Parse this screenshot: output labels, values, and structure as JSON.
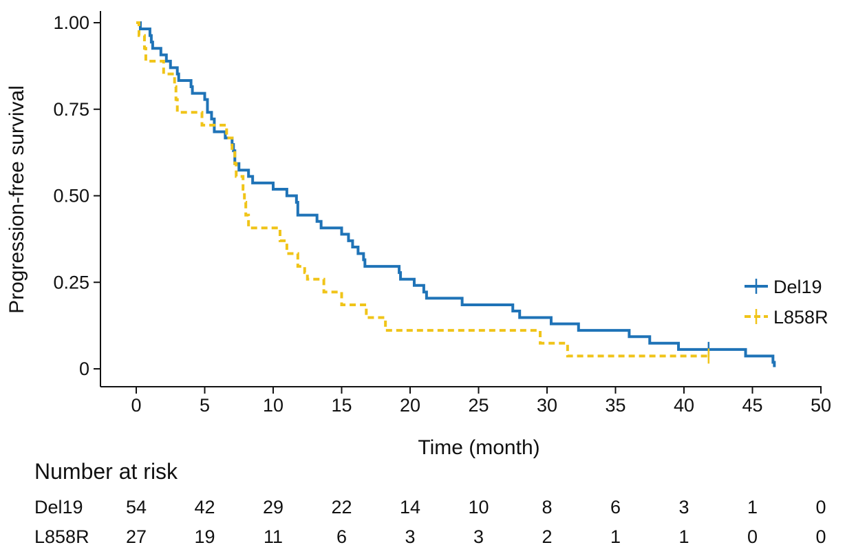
{
  "chart_data": {
    "type": "line",
    "subtype": "kaplan-meier-step",
    "xlabel": "Time (month)",
    "ylabel": "Progression-free survival",
    "xlim": [
      0,
      50
    ],
    "ylim": [
      0,
      1
    ],
    "x_ticks": [
      0,
      5,
      10,
      15,
      20,
      25,
      30,
      35,
      40,
      45,
      50
    ],
    "y_ticks": [
      0,
      0.25,
      0.5,
      0.75,
      1.0
    ],
    "y_tick_labels": [
      "0",
      "0.25",
      "0.50",
      "0.75",
      "1.00"
    ],
    "grid": false,
    "legend_position": "right",
    "series": [
      {
        "name": "Del19",
        "color": "#1f73b7",
        "line_style": "solid",
        "points": [
          [
            0,
            1.0
          ],
          [
            0.3,
            0.982
          ],
          [
            1.0,
            0.963
          ],
          [
            1.1,
            0.944
          ],
          [
            1.2,
            0.926
          ],
          [
            1.8,
            0.907
          ],
          [
            2.2,
            0.889
          ],
          [
            2.5,
            0.87
          ],
          [
            3.0,
            0.852
          ],
          [
            3.1,
            0.833
          ],
          [
            4.0,
            0.815
          ],
          [
            4.1,
            0.796
          ],
          [
            5.0,
            0.778
          ],
          [
            5.2,
            0.741
          ],
          [
            5.5,
            0.722
          ],
          [
            5.7,
            0.685
          ],
          [
            6.5,
            0.667
          ],
          [
            7.0,
            0.648
          ],
          [
            7.1,
            0.63
          ],
          [
            7.2,
            0.593
          ],
          [
            7.5,
            0.574
          ],
          [
            8.2,
            0.556
          ],
          [
            8.5,
            0.537
          ],
          [
            10.0,
            0.519
          ],
          [
            11.0,
            0.5
          ],
          [
            11.7,
            0.481
          ],
          [
            11.8,
            0.444
          ],
          [
            13.2,
            0.426
          ],
          [
            13.5,
            0.407
          ],
          [
            15.0,
            0.389
          ],
          [
            15.5,
            0.37
          ],
          [
            15.8,
            0.352
          ],
          [
            16.2,
            0.333
          ],
          [
            16.6,
            0.315
          ],
          [
            16.7,
            0.296
          ],
          [
            19.2,
            0.278
          ],
          [
            19.3,
            0.259
          ],
          [
            20.3,
            0.241
          ],
          [
            21.0,
            0.222
          ],
          [
            21.2,
            0.204
          ],
          [
            23.8,
            0.185
          ],
          [
            27.5,
            0.167
          ],
          [
            28.0,
            0.148
          ],
          [
            30.3,
            0.13
          ],
          [
            32.3,
            0.111
          ],
          [
            36.0,
            0.093
          ],
          [
            37.5,
            0.074
          ],
          [
            39.6,
            0.056
          ],
          [
            44.5,
            0.037
          ],
          [
            46.5,
            0.019
          ],
          [
            46.6,
            0.005
          ]
        ],
        "censor_marks": [
          [
            41.8,
            0.056
          ]
        ]
      },
      {
        "name": "L858R",
        "color": "#f0c419",
        "line_style": "dashed",
        "points": [
          [
            0,
            1.0
          ],
          [
            0.2,
            0.963
          ],
          [
            0.6,
            0.926
          ],
          [
            0.7,
            0.889
          ],
          [
            2.0,
            0.852
          ],
          [
            2.8,
            0.815
          ],
          [
            2.9,
            0.778
          ],
          [
            3.0,
            0.741
          ],
          [
            4.8,
            0.704
          ],
          [
            5.4,
            0.704
          ],
          [
            6.6,
            0.667
          ],
          [
            7.0,
            0.63
          ],
          [
            7.2,
            0.593
          ],
          [
            7.3,
            0.556
          ],
          [
            7.8,
            0.519
          ],
          [
            7.9,
            0.481
          ],
          [
            8.0,
            0.444
          ],
          [
            8.2,
            0.407
          ],
          [
            10.5,
            0.37
          ],
          [
            11.0,
            0.333
          ],
          [
            11.8,
            0.296
          ],
          [
            12.3,
            0.278
          ],
          [
            12.5,
            0.259
          ],
          [
            13.5,
            0.259
          ],
          [
            13.7,
            0.222
          ],
          [
            15.0,
            0.185
          ],
          [
            16.8,
            0.148
          ],
          [
            18.2,
            0.111
          ],
          [
            29.5,
            0.074
          ],
          [
            31.5,
            0.037
          ]
        ],
        "censor_marks": [
          [
            41.8,
            0.037
          ]
        ]
      }
    ],
    "number_at_risk": {
      "title": "Number at risk",
      "times": [
        0,
        5,
        10,
        15,
        20,
        25,
        30,
        35,
        40,
        45,
        50
      ],
      "rows": [
        {
          "label": "Del19",
          "values": [
            54,
            42,
            29,
            22,
            14,
            10,
            8,
            6,
            3,
            1,
            0
          ]
        },
        {
          "label": "L858R",
          "values": [
            27,
            19,
            11,
            6,
            3,
            3,
            2,
            1,
            1,
            0,
            0
          ]
        }
      ]
    }
  }
}
